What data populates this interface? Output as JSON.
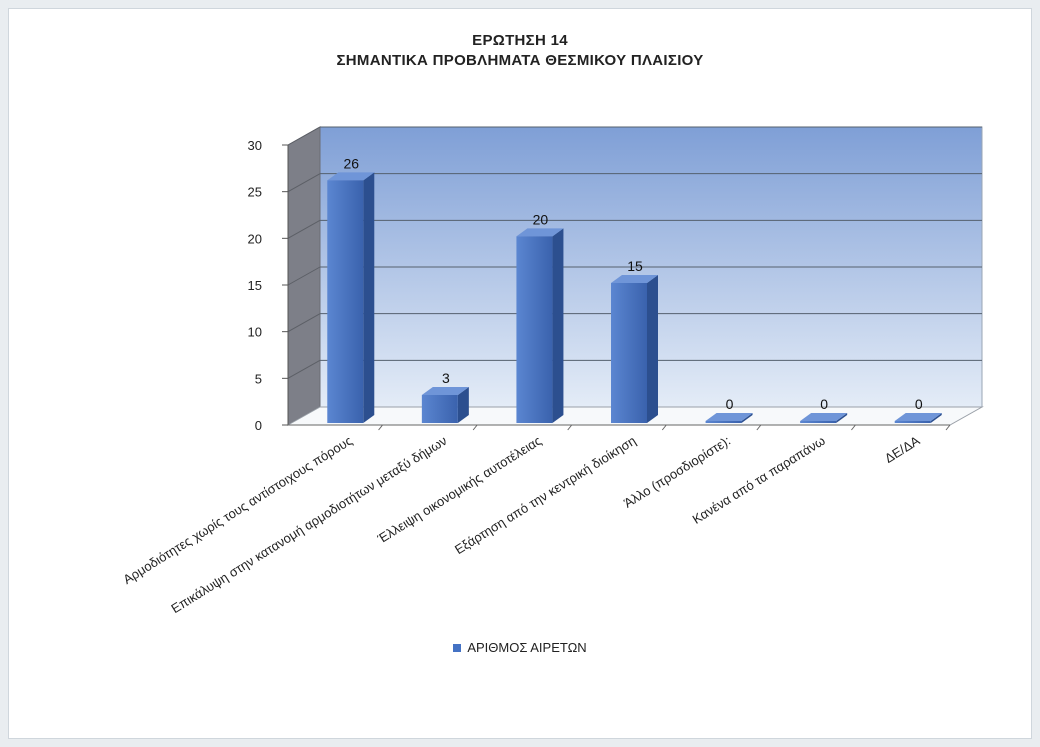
{
  "chart_data": {
    "type": "bar",
    "title": "ΕΡΩΤΗΣΗ 14",
    "subtitle": "ΣΗΜΑΝΤΙΚΑ ΠΡΟΒΛΗΜΑΤΑ ΘΕΣΜΙΚΟΥ ΠΛΑΙΣΙΟΥ",
    "categories": [
      "Αρμοδιότητες χωρίς τους αντίστοιχους πόρους",
      "Επικάλυψη στην κατανομή αρμοδιοτήτων μεταξύ δήμων",
      "Έλλειψη οικονομικής αυτοτέλειας",
      "Εξάρτηση από την κεντρική διοίκηση",
      "Άλλο (προσδιορίστε):",
      "Κανένα από τα παραπάνω",
      "ΔΕ/ΔΑ"
    ],
    "series": [
      {
        "name": "ΑΡΙΘΜΟΣ ΑΙΡΕΤΩΝ",
        "values": [
          26,
          3,
          20,
          15,
          0,
          0,
          0
        ]
      }
    ],
    "yticks": [
      "0",
      "5",
      "10",
      "15",
      "20",
      "25",
      "30"
    ],
    "ylim": [
      0,
      30
    ],
    "grid": true,
    "legend_position": "bottom",
    "colors": {
      "bar": "#4472c4",
      "wall": "#8fa9d6",
      "floor": "#ffffff"
    }
  }
}
